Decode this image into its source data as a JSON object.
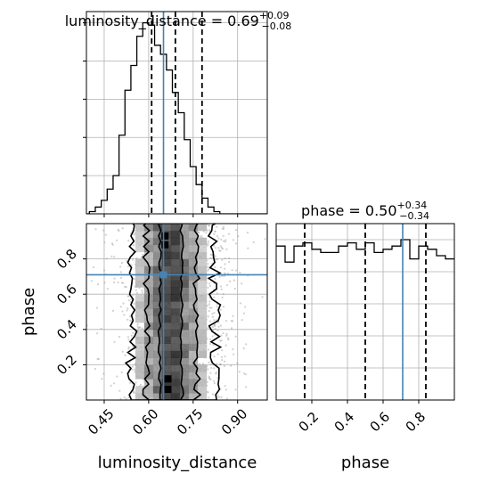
{
  "colors": {
    "truth": "#4682b4",
    "hist": "#000000",
    "quantile": "#000000",
    "grid": "#b0b0b0",
    "scatter": "#9a9a9a"
  },
  "chart_data": [
    {
      "type": "histogram",
      "panel": "top-left",
      "title": {
        "main": "luminosity_distance = 0.69",
        "sup": "+0.09",
        "sub": "−0.08"
      },
      "xlim": [
        0.39,
        1.0
      ],
      "grid": true,
      "truth": 0.65,
      "quantiles": [
        0.61,
        0.69,
        0.78
      ],
      "bins_start": 0.4,
      "bin_width": 0.02,
      "counts": [
        1,
        3,
        6,
        11,
        17,
        35,
        55,
        66,
        79,
        85,
        84,
        75,
        71,
        64,
        54,
        45,
        33,
        21,
        13,
        7,
        3,
        1
      ],
      "count_max": 90,
      "tick_values": [
        0.45,
        0.6,
        0.75,
        0.9
      ],
      "tick_labels": []
    },
    {
      "type": "heatmap",
      "panel": "bottom-left",
      "xlabel": "luminosity_distance",
      "ylabel": "phase",
      "xlim": [
        0.39,
        1.0
      ],
      "ylim": [
        0.0,
        1.0
      ],
      "grid": true,
      "truth": {
        "x": 0.65,
        "y": 0.71
      },
      "x_ticks": [
        0.45,
        0.6,
        0.75,
        0.9
      ],
      "x_tick_labels": [
        "0.45",
        "0.60",
        "0.75",
        "0.90"
      ],
      "y_ticks": [
        0.2,
        0.4,
        0.6,
        0.8
      ],
      "y_tick_labels": [
        "0.2",
        "0.4",
        "0.6",
        "0.8"
      ],
      "density_bin_width_x": 0.03,
      "density_bin_width_y": 0.04,
      "contour_levels": [
        0.5,
        0.8,
        0.95
      ]
    },
    {
      "type": "histogram",
      "panel": "bottom-right",
      "title": {
        "main": "phase = 0.50",
        "sup": "+0.34",
        "sub": "−0.34"
      },
      "xlabel": "phase",
      "xlim": [
        0.0,
        1.0
      ],
      "grid": true,
      "truth": 0.71,
      "quantiles": [
        0.16,
        0.5,
        0.84
      ],
      "bins_start": 0.0,
      "bin_width": 0.05,
      "counts": [
        48,
        43,
        48,
        49,
        47,
        46,
        46,
        48,
        49,
        47,
        49,
        46,
        47,
        48,
        50,
        44,
        48,
        47,
        45,
        44
      ],
      "count_max": 55,
      "x_ticks": [
        0.2,
        0.4,
        0.6,
        0.8
      ],
      "x_tick_labels": [
        "0.2",
        "0.4",
        "0.6",
        "0.8"
      ]
    }
  ]
}
